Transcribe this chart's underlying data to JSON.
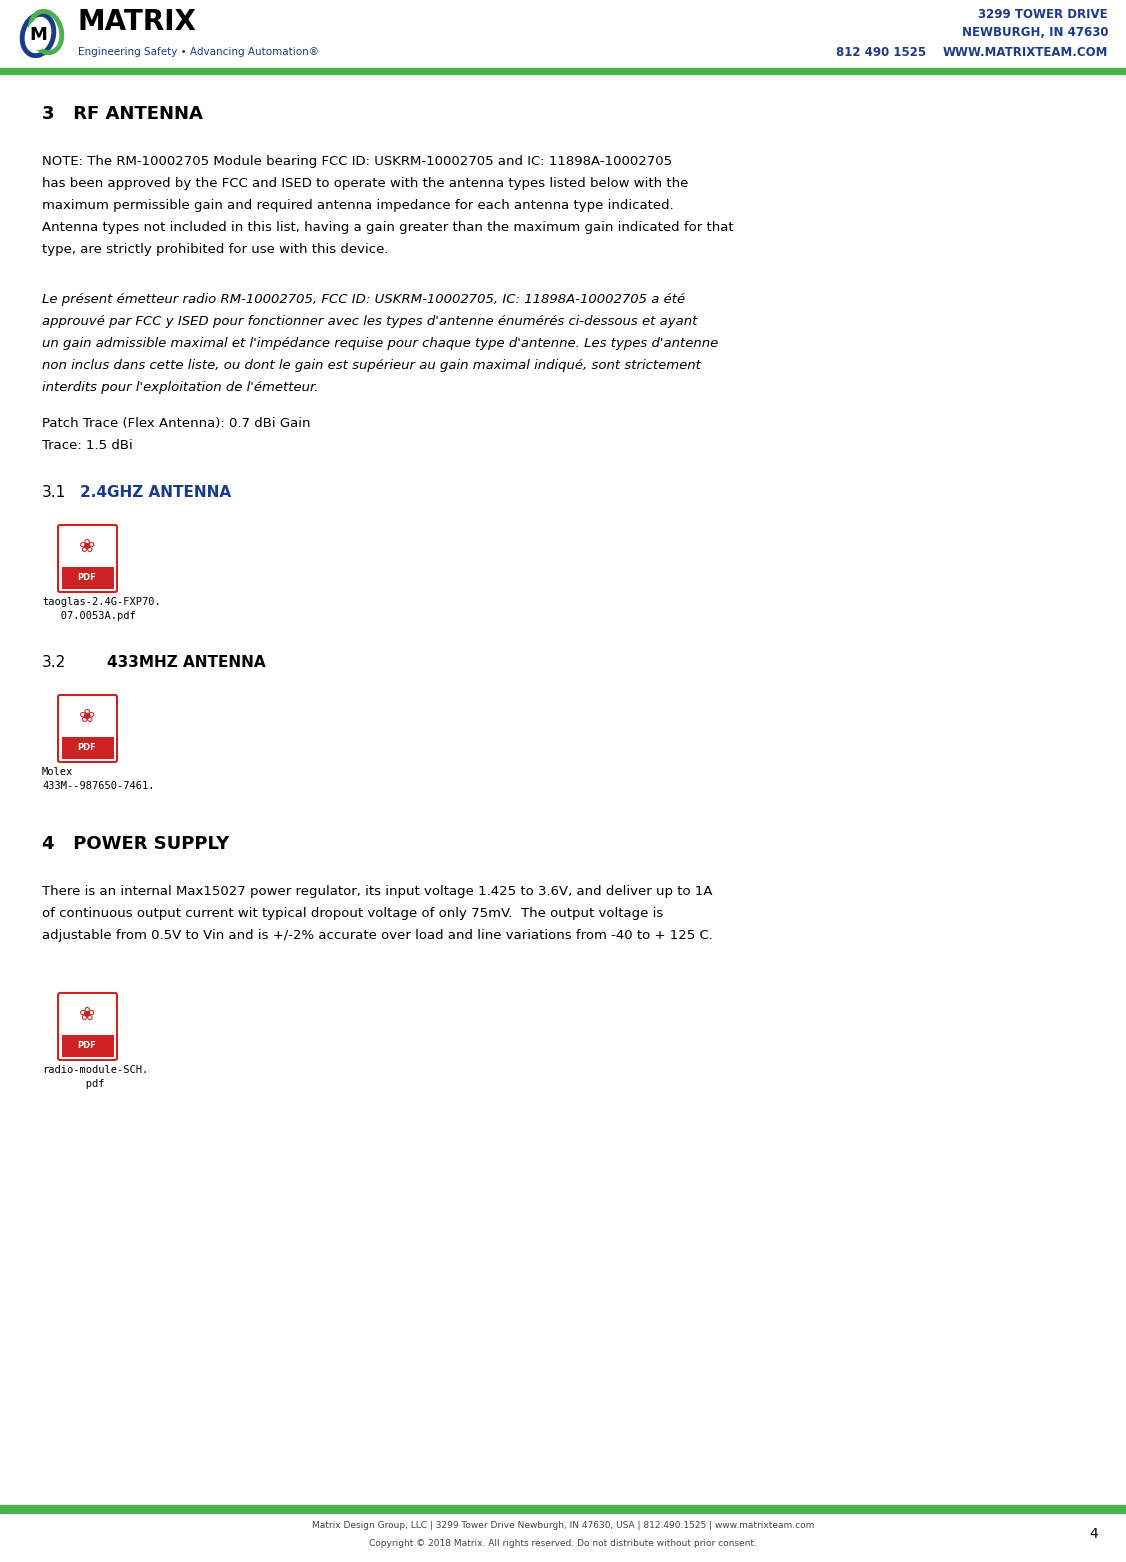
{
  "page_width": 11.26,
  "page_height": 15.62,
  "dpi": 100,
  "bg_color": "#ffffff",
  "header": {
    "company_name": "MATRIX",
    "tagline": "Engineering Safety • Advancing Automation®",
    "address_line1": "3299 TOWER DRIVE",
    "address_line2": "NEWBURGH, IN 47630",
    "phone": "812 490 1525",
    "website": "WWW.MATRIXTEAM.COM",
    "header_line_color": "#4caf50"
  },
  "footer": {
    "line_color": "#4caf50",
    "text": "Matrix Design Group, LLC | 3299 Tower Drive Newburgh, IN 47630, USA | 812.490.1525 | www.matrixteam.com",
    "copyright": "Copyright © 2018 Matrix. All rights reserved. Do not distribute without prior consent.",
    "page_number": "4"
  },
  "content": {
    "section3_heading": "3   RF ANTENNA",
    "para1_lines": [
      "NOTE: The RM-10002705 Module bearing FCC ID: USKRM-10002705 and IC: 11898A-10002705",
      "has been approved by the FCC and ISED to operate with the antenna types listed below with the",
      "maximum permissible gain and required antenna impedance for each antenna type indicated.",
      "Antenna types not included in this list, having a gain greater than the maximum gain indicated for that",
      "type, are strictly prohibited for use with this device."
    ],
    "para2_lines": [
      "Le présent émetteur radio RM-10002705, FCC ID: USKRM-10002705, IC: 11898A-10002705 a été",
      "approuvé par FCC y ISED pour fonctionner avec les types d'antenne énumérés ci-dessous et ayant",
      "un gain admissible maximal et l'impédance requise pour chaque type d'antenne. Les types d'antenne",
      "non inclus dans cette liste, ou dont le gain est supérieur au gain maximal indiqué, sont strictement",
      "interdits pour l'exploitation de l'émetteur."
    ],
    "patch_trace": "Patch Trace (Flex Antenna): 0.7 dBi Gain",
    "trace": "Trace: 1.5 dBi",
    "section31_num": "3.1",
    "section31_heading": "2.4GHZ ANTENNA",
    "pdf_label1_lines": [
      "taoglas-2.4G-FXP70.",
      "   07.0053A.pdf"
    ],
    "section32_num": "3.2",
    "section32_heading": "433MHZ ANTENNA",
    "pdf_label2_lines": [
      "Molex",
      "433M--987650-7461."
    ],
    "section4_heading": "4   POWER SUPPLY",
    "para3_lines": [
      "There is an internal Max15027 power regulator, its input voltage 1.425 to 3.6V, and deliver up to 1A",
      "of continuous output current wit typical dropout voltage of only 75mV.  The output voltage is",
      "adjustable from 0.5V to Vin and is +/-2% accurate over load and line variations from -40 to + 125 C."
    ],
    "pdf_label3_lines": [
      "radio-module-SCH.",
      "       pdf"
    ]
  }
}
